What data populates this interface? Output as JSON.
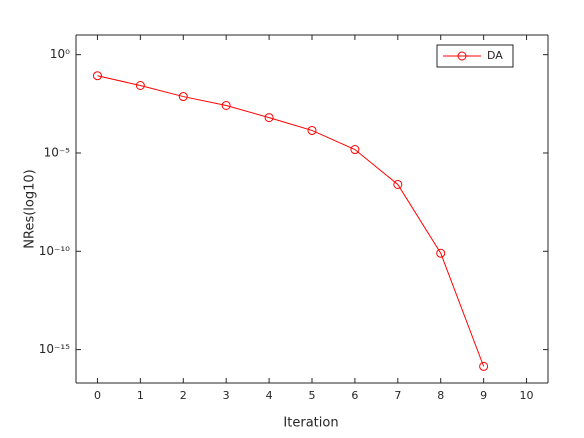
{
  "chart_data": {
    "type": "line",
    "log_y": true,
    "box": true,
    "xlabel": "Iteration",
    "ylabel": "NRes(log10)",
    "x": [
      0,
      1,
      2,
      3,
      4,
      5,
      6,
      7,
      8,
      9
    ],
    "series": [
      {
        "name": "DA",
        "color": "#ff0000",
        "marker": "circle",
        "values": [
          0.085,
          0.027,
          0.0074,
          0.0026,
          0.00063,
          0.00014,
          1.5e-05,
          2.5e-07,
          8e-11,
          1.4e-16
        ]
      }
    ],
    "xlim": [
      -0.5,
      10.5
    ],
    "xticks": [
      0,
      1,
      2,
      3,
      4,
      5,
      6,
      7,
      8,
      9,
      10
    ],
    "ylim": [
      2e-17,
      10
    ],
    "yticks": [
      {
        "value": 1e-15,
        "label": "10⁻¹⁵"
      },
      {
        "value": 1e-10,
        "label": "10⁻¹⁰"
      },
      {
        "value": 1e-05,
        "label": "10⁻⁵"
      },
      {
        "value": 1,
        "label": "10⁰"
      }
    ],
    "legend": "top-right"
  }
}
